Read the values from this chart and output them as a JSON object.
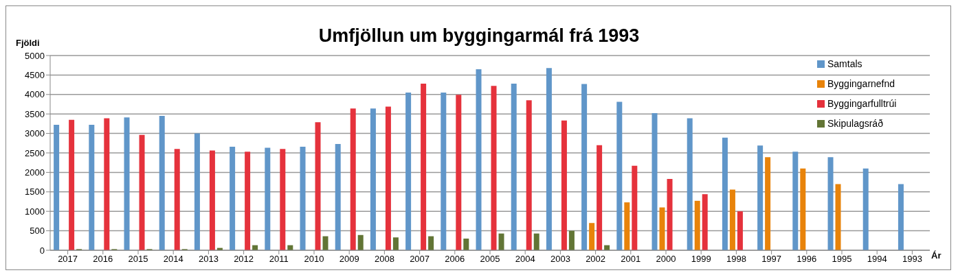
{
  "chart_data": {
    "type": "bar",
    "title": "Umfjöllun um byggingarmál frá 1993",
    "ylabel": "Fjöldi",
    "xlabel": "Ár",
    "categories": [
      "2017",
      "2016",
      "2015",
      "2014",
      "2013",
      "2012",
      "2011",
      "2010",
      "2009",
      "2008",
      "2007",
      "2006",
      "2005",
      "2004",
      "2003",
      "2002",
      "2001",
      "2000",
      "1999",
      "1998",
      "1997",
      "1996",
      "1995",
      "1994",
      "1993"
    ],
    "series": [
      {
        "name": "Samtals",
        "color": "#6096c9",
        "values": [
          3220,
          3220,
          3410,
          3450,
          3000,
          2660,
          2630,
          2660,
          2730,
          3640,
          4050,
          4050,
          4650,
          4280,
          4680,
          4270,
          3810,
          3520,
          3390,
          2890,
          2690,
          2530,
          2390,
          2100,
          1700
        ]
      },
      {
        "name": "Byggingarnefnd",
        "color": "#e8830a",
        "values": [
          null,
          null,
          null,
          null,
          null,
          null,
          null,
          null,
          null,
          null,
          null,
          null,
          null,
          null,
          null,
          700,
          1230,
          1100,
          1270,
          1560,
          2390,
          2100,
          1700,
          null,
          null
        ]
      },
      {
        "name": "Byggingarfulltrúi",
        "color": "#e5323c",
        "values": [
          3350,
          3390,
          2960,
          2600,
          2560,
          2530,
          2600,
          3290,
          3640,
          3690,
          4280,
          3990,
          4220,
          3850,
          3330,
          2700,
          2170,
          1830,
          1440,
          1000,
          null,
          null,
          null,
          null,
          null
        ]
      },
      {
        "name": "Skipulagsráð",
        "color": "#627535",
        "values": [
          30,
          30,
          30,
          30,
          60,
          130,
          130,
          360,
          390,
          330,
          360,
          300,
          430,
          430,
          500,
          130,
          null,
          null,
          null,
          null,
          null,
          null,
          null,
          null,
          null
        ]
      }
    ],
    "ylim": [
      0,
      5000
    ],
    "yticks": [
      0,
      500,
      1000,
      1500,
      2000,
      2500,
      3000,
      3500,
      4000,
      4500,
      5000
    ],
    "grid": "y",
    "legend": "top right"
  }
}
